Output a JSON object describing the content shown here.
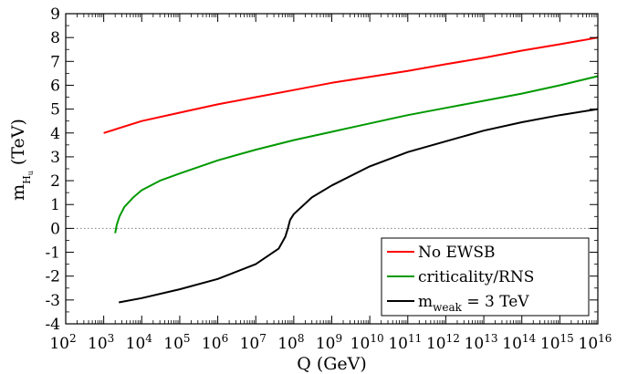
{
  "chart_data": {
    "type": "line",
    "xlabel": "Q (GeV)",
    "ylabel": {
      "main": "m",
      "sub": "H",
      "subsub": "u",
      "unit": "(TeV)"
    },
    "xscale": "log",
    "xlim": [
      100,
      1e+16
    ],
    "ylim": [
      -4,
      9
    ],
    "x_tick_labels": [
      {
        "base": "10",
        "exp": "2"
      },
      {
        "base": "10",
        "exp": "3"
      },
      {
        "base": "10",
        "exp": "4"
      },
      {
        "base": "10",
        "exp": "5"
      },
      {
        "base": "10",
        "exp": "6"
      },
      {
        "base": "10",
        "exp": "7"
      },
      {
        "base": "10",
        "exp": "8"
      },
      {
        "base": "10",
        "exp": "9"
      },
      {
        "base": "10",
        "exp": "10"
      },
      {
        "base": "10",
        "exp": "11"
      },
      {
        "base": "10",
        "exp": "12"
      },
      {
        "base": "10",
        "exp": "13"
      },
      {
        "base": "10",
        "exp": "14"
      },
      {
        "base": "10",
        "exp": "15"
      },
      {
        "base": "10",
        "exp": "16"
      }
    ],
    "y_tick_labels": [
      "-4",
      "-3",
      "-2",
      "-1",
      "0",
      "1",
      "2",
      "3",
      "4",
      "5",
      "6",
      "7",
      "8",
      "9"
    ],
    "reference_line": {
      "y": 0,
      "style": "dotted",
      "color": "#808080"
    },
    "legend_position": "bottom-right",
    "series": [
      {
        "name": "No EWSB",
        "color": "#ff0000",
        "points": [
          [
            1000,
            4.0
          ],
          [
            10000.0,
            4.5
          ],
          [
            100000.0,
            4.85
          ],
          [
            1000000.0,
            5.2
          ],
          [
            10000000.0,
            5.5
          ],
          [
            100000000.0,
            5.8
          ],
          [
            1000000000.0,
            6.1
          ],
          [
            10000000000.0,
            6.35
          ],
          [
            100000000000.0,
            6.6
          ],
          [
            1000000000000.0,
            6.88
          ],
          [
            10000000000000.0,
            7.15
          ],
          [
            100000000000000.0,
            7.45
          ],
          [
            1000000000000000.0,
            7.72
          ],
          [
            1e+16,
            8.0
          ]
        ]
      },
      {
        "name": "criticality/RNS",
        "color": "#009900",
        "points": [
          [
            2000,
            -0.2
          ],
          [
            2200,
            0.15
          ],
          [
            2600,
            0.5
          ],
          [
            3500,
            0.9
          ],
          [
            6000,
            1.3
          ],
          [
            10000.0,
            1.6
          ],
          [
            30000.0,
            2.0
          ],
          [
            100000.0,
            2.3
          ],
          [
            1000000.0,
            2.85
          ],
          [
            10000000.0,
            3.3
          ],
          [
            100000000.0,
            3.7
          ],
          [
            1000000000.0,
            4.05
          ],
          [
            10000000000.0,
            4.4
          ],
          [
            100000000000.0,
            4.75
          ],
          [
            1000000000000.0,
            5.05
          ],
          [
            10000000000000.0,
            5.35
          ],
          [
            100000000000000.0,
            5.65
          ],
          [
            1000000000000000.0,
            6.0
          ],
          [
            1e+16,
            6.38
          ]
        ]
      },
      {
        "name": "m_weak = 3 TeV",
        "legend_label": {
          "main": "m",
          "sub": "weak",
          "rest": " = 3 TeV"
        },
        "color": "#000000",
        "points": [
          [
            2500,
            -3.1
          ],
          [
            10000.0,
            -2.92
          ],
          [
            100000.0,
            -2.55
          ],
          [
            1000000.0,
            -2.12
          ],
          [
            10000000.0,
            -1.5
          ],
          [
            40000000.0,
            -0.85
          ],
          [
            60000000.0,
            -0.35
          ],
          [
            70000000.0,
            0.0
          ],
          [
            80000000.0,
            0.35
          ],
          [
            100000000.0,
            0.6
          ],
          [
            300000000.0,
            1.3
          ],
          [
            1000000000.0,
            1.8
          ],
          [
            10000000000.0,
            2.6
          ],
          [
            100000000000.0,
            3.2
          ],
          [
            1000000000000.0,
            3.65
          ],
          [
            10000000000000.0,
            4.1
          ],
          [
            100000000000000.0,
            4.45
          ],
          [
            1000000000000000.0,
            4.75
          ],
          [
            1e+16,
            5.0
          ]
        ]
      }
    ]
  }
}
